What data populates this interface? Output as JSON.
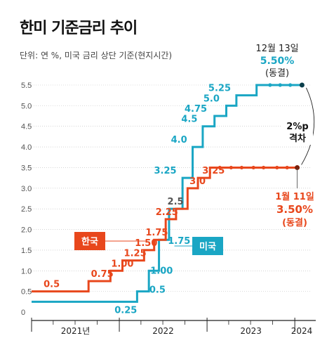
{
  "title": "한미 기준금리 추이",
  "subtitle": "단위: 연 %, 미국 금리 상단 기준(현지시간)",
  "colors": {
    "us": "#1aa6c4",
    "kr": "#e8471c",
    "axis": "#222222",
    "grid": "#bbbbbb",
    "text": "#444444"
  },
  "chart_data": {
    "type": "line",
    "step": true,
    "xlim": [
      "2021-01-01",
      "2024-02-28"
    ],
    "ylim": [
      0,
      5.5
    ],
    "y_ticks": [
      "0",
      "0.5",
      "1.0",
      "1.5",
      "2.0",
      "2.5",
      "3.0",
      "3.5",
      "4.0",
      "4.5",
      "5.0",
      "5.5"
    ],
    "x_axis_labels": [
      "2021년",
      "2022",
      "2023",
      "2024"
    ],
    "series": [
      {
        "name": "미국",
        "key": "us",
        "points": [
          [
            "2021-01-01",
            0.25
          ],
          [
            "2022-03-16",
            0.5
          ],
          [
            "2022-05-04",
            1.0
          ],
          [
            "2022-06-15",
            1.75
          ],
          [
            "2022-07-27",
            2.5
          ],
          [
            "2022-09-21",
            3.25
          ],
          [
            "2022-11-02",
            4.0
          ],
          [
            "2022-12-14",
            4.5
          ],
          [
            "2023-02-01",
            4.75
          ],
          [
            "2023-03-22",
            5.0
          ],
          [
            "2023-05-03",
            5.25
          ],
          [
            "2023-07-26",
            5.5
          ],
          [
            "2024-01-31",
            5.5
          ]
        ],
        "dots": [
          "2023-09-20",
          "2023-11-01",
          "2023-12-13",
          "2024-01-31"
        ]
      },
      {
        "name": "한국",
        "key": "kr",
        "points": [
          [
            "2021-01-01",
            0.5
          ],
          [
            "2021-08-26",
            0.75
          ],
          [
            "2021-11-25",
            1.0
          ],
          [
            "2022-01-14",
            1.25
          ],
          [
            "2022-04-14",
            1.5
          ],
          [
            "2022-05-26",
            1.75
          ],
          [
            "2022-07-13",
            2.25
          ],
          [
            "2022-08-25",
            2.5
          ],
          [
            "2022-10-12",
            3.0
          ],
          [
            "2022-11-24",
            3.25
          ],
          [
            "2023-01-13",
            3.5
          ],
          [
            "2024-01-11",
            3.5
          ]
        ],
        "dots": [
          "2023-02-23",
          "2023-04-11",
          "2023-05-25",
          "2023-07-13",
          "2023-08-24",
          "2023-10-19",
          "2023-11-30",
          "2024-01-11"
        ]
      }
    ],
    "kr_labels": [
      {
        "text": "0.5",
        "date": "2021-02-20",
        "y": 0.5
      },
      {
        "text": "0.75",
        "date": "2021-09-05",
        "y": 0.75
      },
      {
        "text": "1.00",
        "date": "2021-11-28",
        "y": 1.0
      },
      {
        "text": "1.25",
        "date": "2022-01-20",
        "y": 1.25
      },
      {
        "text": "1.50",
        "date": "2022-03-07",
        "y": 1.5
      },
      {
        "text": "1.75",
        "date": "2022-04-20",
        "y": 1.75
      },
      {
        "text": "2.25",
        "date": "2022-06-01",
        "y": 2.25
      },
      {
        "text": "2.5",
        "date": "2022-07-20",
        "y": 2.5
      },
      {
        "text": "3.0",
        "date": "2022-10-20",
        "y": 3.0
      },
      {
        "text": "3.25",
        "date": "2022-12-12",
        "y": 3.25
      }
    ],
    "us_labels": [
      {
        "text": "0.25",
        "date": "2022-01-28",
        "y": 0.25
      },
      {
        "text": "0.5",
        "date": "2022-04-10",
        "y": 0.5
      },
      {
        "text": "1.00",
        "date": "2022-05-20",
        "y": 1.0
      },
      {
        "text": "1.75",
        "date": "2022-08-03",
        "y": 1.75
      },
      {
        "text": "3.25",
        "date": "2022-08-27",
        "y": 3.25
      },
      {
        "text": "4.0",
        "date": "2022-10-10",
        "y": 4.0
      },
      {
        "text": "4.5",
        "date": "2022-11-22",
        "y": 4.5
      },
      {
        "text": "4.75",
        "date": "2023-01-01",
        "y": 4.75
      },
      {
        "text": "5.0",
        "date": "2023-02-22",
        "y": 5.0
      },
      {
        "text": "5.25",
        "date": "2023-04-10",
        "y": 5.25
      }
    ],
    "legend": {
      "kr": "한국",
      "us": "미국"
    },
    "annotations": {
      "us_date": "12월 13일",
      "us_rate": "5.50%",
      "us_status": "(동결)",
      "kr_date": "1월 11일",
      "kr_rate": "3.50%",
      "kr_status": "(동결)",
      "gap_value": "2%p",
      "gap_label": "격차"
    }
  }
}
